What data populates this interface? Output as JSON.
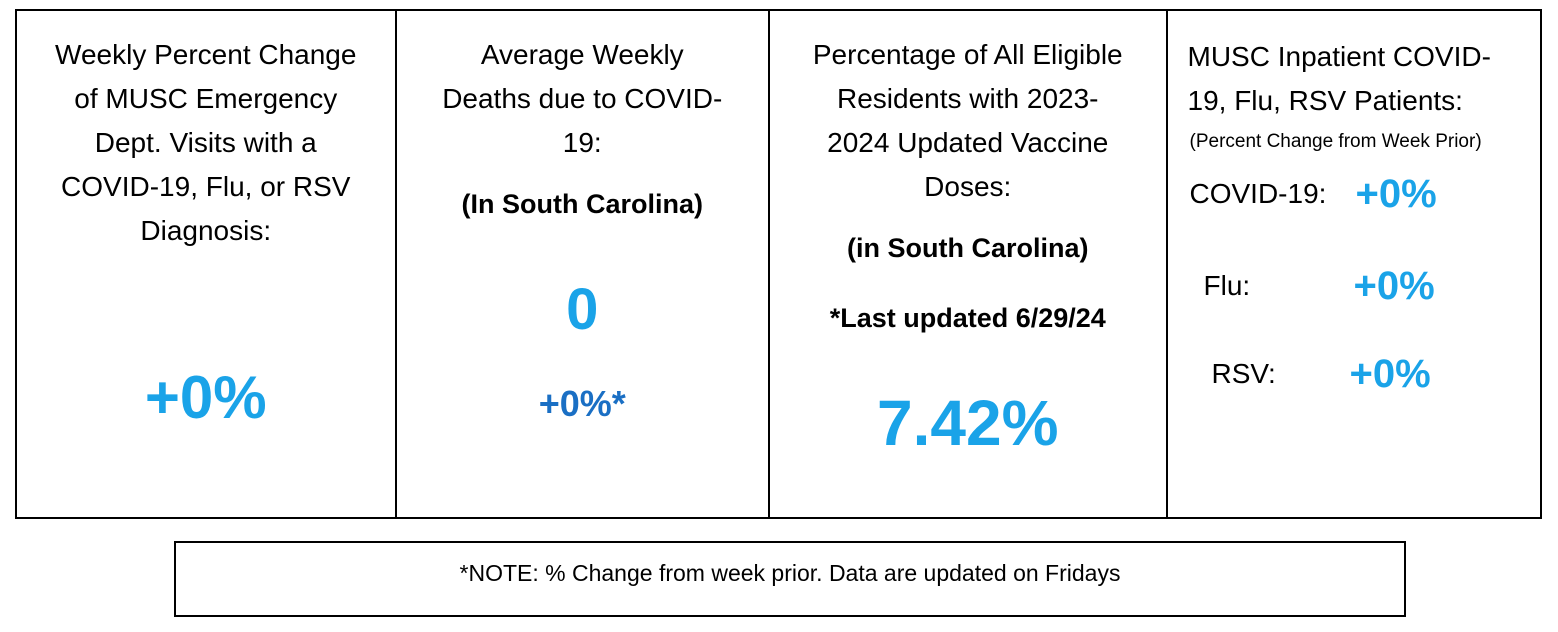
{
  "panel1": {
    "title_lines": [
      "Weekly Percent Change",
      "of MUSC Emergency",
      "Dept. Visits with a",
      "COVID-19, Flu, or RSV",
      "Diagnosis:"
    ],
    "value": "+0%"
  },
  "panel2": {
    "title_lines": [
      "Average Weekly",
      "Deaths due to COVID-",
      "19:"
    ],
    "region": "(In South Carolina)",
    "value": "0",
    "change": "+0%*"
  },
  "panel3": {
    "title_lines": [
      "Percentage of All Eligible",
      "Residents with 2023-",
      "2024 Updated Vaccine",
      "Doses:"
    ],
    "region": "(in South Carolina)",
    "updated": "*Last updated 6/29/24",
    "value": "7.42%"
  },
  "panel4": {
    "title_lines": [
      "MUSC Inpatient COVID-",
      "19, Flu, RSV Patients:"
    ],
    "subtitle": "(Percent Change from Week Prior)",
    "rows": [
      {
        "label": "COVID-19:",
        "value": "+0%"
      },
      {
        "label": "Flu:",
        "value": "+0%"
      },
      {
        "label": "RSV:",
        "value": "+0%"
      }
    ]
  },
  "footnote": "*NOTE: % Change from week prior. Data are updated on Fridays",
  "colors": {
    "value_blue": "#1aa3e8",
    "change_blue": "#1a6fc4"
  }
}
